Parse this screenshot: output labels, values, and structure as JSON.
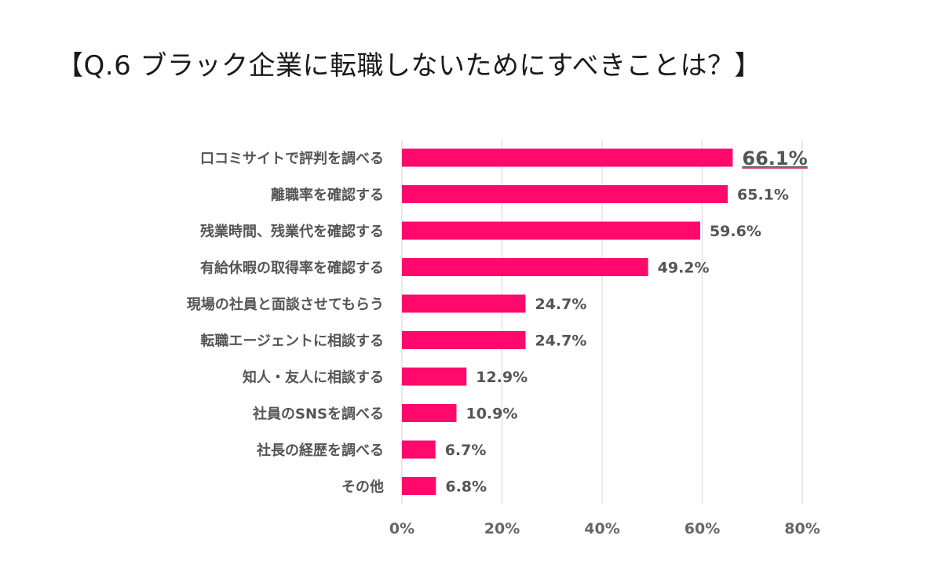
{
  "chart_data": {
    "type": "bar",
    "orientation": "horizontal",
    "title": "【Q.6 ブラック企業に転職しないためにすべきことは？】",
    "categories": [
      "口コミサイトで評判を調べる",
      "離職率を確認する",
      "残業時間、残業代を確認する",
      "有給休暇の取得率を確認する",
      "現場の社員と面談させてもらう",
      "転職エージェントに相談する",
      "知人・友人に相談する",
      "社員のSNSを調べる",
      "社長の経歴を調べる",
      "その他"
    ],
    "values": [
      66.1,
      65.1,
      59.6,
      49.2,
      24.7,
      24.7,
      12.9,
      10.9,
      6.7,
      6.8
    ],
    "value_labels": [
      "66.1%",
      "65.1%",
      "59.6%",
      "49.2%",
      "24.7%",
      "24.7%",
      "12.9%",
      "10.9%",
      "6.7%",
      "6.8%"
    ],
    "highlight_index": 0,
    "xlim": [
      0,
      80
    ],
    "x_ticks": [
      0,
      20,
      40,
      60,
      80
    ],
    "x_tick_labels": [
      "0%",
      "20%",
      "40%",
      "60%",
      "80%"
    ],
    "grid": "vertical",
    "legend": "none",
    "bar_color": "#ff0a6c",
    "highlight_color": "#e8327c",
    "xlabel": "",
    "ylabel": ""
  }
}
